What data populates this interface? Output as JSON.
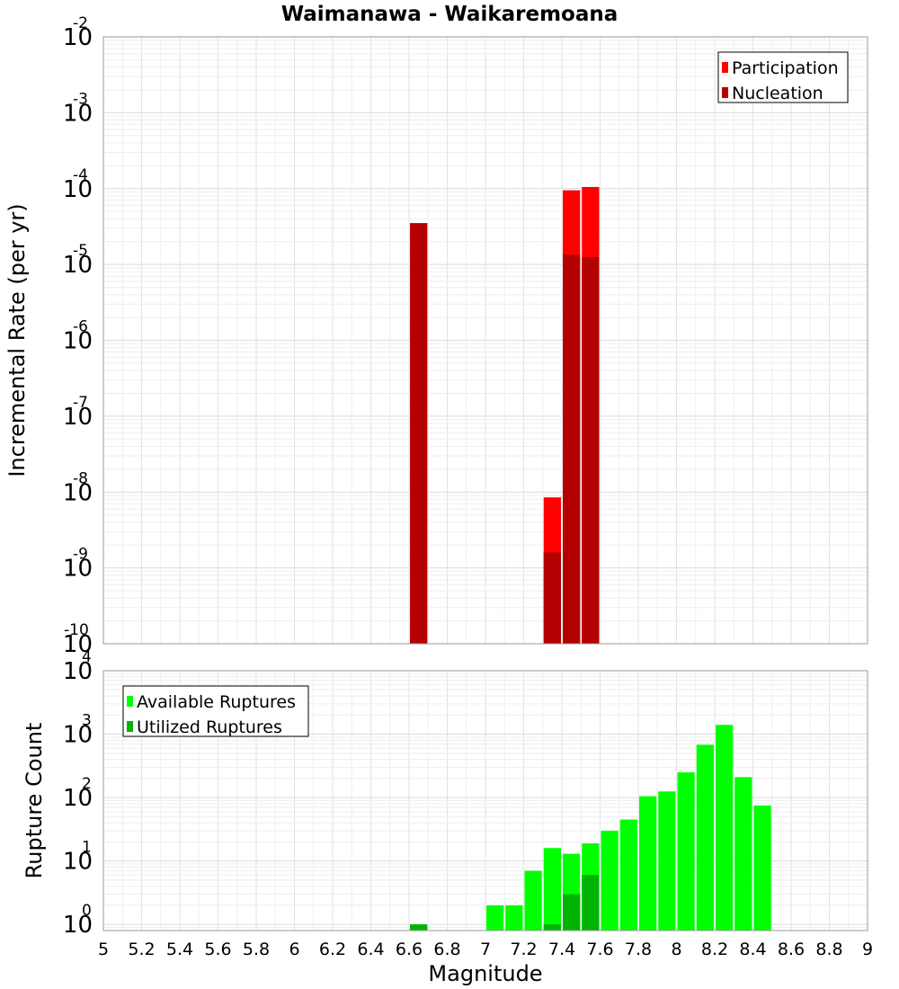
{
  "title": "Waimanawa - Waikaremoana",
  "chart_data": [
    {
      "type": "bar",
      "scale": "log",
      "ylabel": "Incremental Rate (per yr)",
      "xlabel": "",
      "xlim": [
        5,
        9
      ],
      "ylim": [
        1e-10,
        0.01
      ],
      "y_tick_exponents": [
        "-2",
        "-3",
        "-4",
        "-5",
        "-6",
        "-7",
        "-8",
        "-9",
        "-10"
      ],
      "grid": true,
      "legend_position": "top-right",
      "series": [
        {
          "name": "Participation",
          "color": "#ff0000",
          "x": [
            6.65,
            7.35,
            7.45,
            7.55
          ],
          "values": [
            3.5e-05,
            8.5e-09,
            9.5e-05,
            0.000105
          ]
        },
        {
          "name": "Nucleation",
          "color": "#b30000",
          "x": [
            6.65,
            7.35,
            7.45,
            7.55
          ],
          "values": [
            3.5e-05,
            1.6e-09,
            1.35e-05,
            1.25e-05
          ]
        }
      ]
    },
    {
      "type": "bar",
      "scale": "log",
      "ylabel": "Rupture Count",
      "xlabel": "Magnitude",
      "xlim": [
        5,
        9
      ],
      "ylim": [
        0.8,
        10000
      ],
      "y_tick_exponents": [
        "4",
        "3",
        "2",
        "1",
        "0"
      ],
      "x_ticks": [
        "5",
        "5.2",
        "5.4",
        "5.6",
        "5.8",
        "6",
        "6.2",
        "6.4",
        "6.6",
        "6.8",
        "7",
        "7.2",
        "7.4",
        "7.6",
        "7.8",
        "8",
        "8.2",
        "8.4",
        "8.6",
        "8.8",
        "9"
      ],
      "grid": true,
      "legend_position": "top-left",
      "series": [
        {
          "name": "Available Ruptures",
          "color": "#00ff00",
          "x": [
            6.65,
            7.05,
            7.15,
            7.25,
            7.35,
            7.45,
            7.55,
            7.65,
            7.75,
            7.85,
            7.95,
            8.05,
            8.15,
            8.25,
            8.35,
            8.45
          ],
          "values": [
            1,
            2,
            2,
            7,
            16,
            13,
            19,
            30,
            45,
            105,
            125,
            250,
            680,
            1400,
            210,
            75
          ]
        },
        {
          "name": "Utilized Ruptures",
          "color": "#00b300",
          "x": [
            6.65,
            7.35,
            7.45,
            7.55
          ],
          "values": [
            1,
            1,
            3,
            6
          ]
        }
      ]
    }
  ]
}
